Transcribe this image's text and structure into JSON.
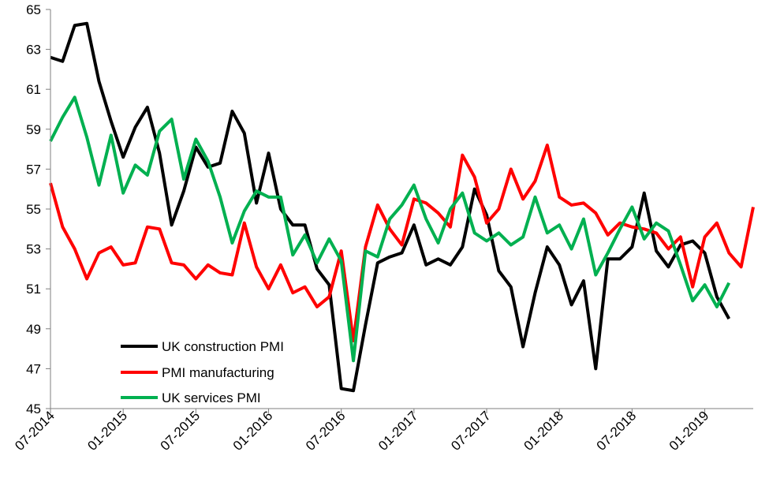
{
  "chart_data": {
    "type": "line",
    "title": "",
    "xlabel": "",
    "ylabel": "",
    "ylim": [
      45,
      65
    ],
    "yticks": [
      45,
      47,
      49,
      51,
      53,
      55,
      57,
      59,
      61,
      63,
      65
    ],
    "xticks": [
      "07-2014",
      "01-2015",
      "07-2015",
      "01-2016",
      "07-2016",
      "01-2017",
      "07-2017",
      "01-2018",
      "07-2018",
      "01-2019"
    ],
    "grid": false,
    "legend_placement": "bottom-left",
    "x": [
      "07-2014",
      "08-2014",
      "09-2014",
      "10-2014",
      "11-2014",
      "12-2014",
      "01-2015",
      "02-2015",
      "03-2015",
      "04-2015",
      "05-2015",
      "06-2015",
      "07-2015",
      "08-2015",
      "09-2015",
      "10-2015",
      "11-2015",
      "12-2015",
      "01-2016",
      "02-2016",
      "03-2016",
      "04-2016",
      "05-2016",
      "06-2016",
      "07-2016",
      "08-2016",
      "09-2016",
      "10-2016",
      "11-2016",
      "12-2016",
      "01-2017",
      "02-2017",
      "03-2017",
      "04-2017",
      "05-2017",
      "06-2017",
      "07-2017",
      "08-2017",
      "09-2017",
      "10-2017",
      "11-2017",
      "12-2017",
      "01-2018",
      "02-2018",
      "03-2018",
      "04-2018",
      "05-2018",
      "06-2018",
      "07-2018",
      "08-2018",
      "09-2018",
      "10-2018",
      "11-2018",
      "12-2018",
      "01-2019",
      "02-2019",
      "03-2019",
      "04-2019",
      "05-2019"
    ],
    "series": [
      {
        "name": "UK construction PMI",
        "color": "#000000",
        "values": [
          62.6,
          62.4,
          64.2,
          64.3,
          61.4,
          59.4,
          57.6,
          59.1,
          60.1,
          57.8,
          54.2,
          55.9,
          58.1,
          57.1,
          57.3,
          59.9,
          58.8,
          55.3,
          57.8,
          55.0,
          54.2,
          54.2,
          52.0,
          51.2,
          46.0,
          45.9,
          49.2,
          52.3,
          52.6,
          52.8,
          54.2,
          52.2,
          52.5,
          52.2,
          53.1,
          56.0,
          54.7,
          51.9,
          51.1,
          48.1,
          50.8,
          53.1,
          52.2,
          50.2,
          51.4,
          47.0,
          52.5,
          52.5,
          53.1,
          55.8,
          52.9,
          52.1,
          53.2,
          53.4,
          52.8,
          50.6,
          49.5,
          null,
          null
        ]
      },
      {
        "name": "PMI manufacturing",
        "color": "#ff0000",
        "values": [
          56.3,
          54.1,
          53.0,
          51.5,
          52.8,
          53.1,
          52.2,
          52.3,
          54.1,
          54.0,
          52.3,
          52.2,
          51.5,
          52.2,
          51.8,
          51.7,
          54.3,
          52.1,
          51.0,
          52.2,
          50.8,
          51.1,
          50.1,
          50.6,
          52.9,
          48.4,
          53.1,
          55.2,
          54.0,
          53.2,
          55.5,
          55.3,
          54.8,
          54.1,
          57.7,
          56.6,
          54.3,
          55.0,
          57.0,
          55.5,
          56.4,
          58.2,
          55.6,
          55.2,
          55.3,
          54.8,
          53.7,
          54.3,
          54.1,
          54.0,
          53.8,
          53.0,
          53.6,
          51.1,
          53.6,
          54.3,
          52.8,
          52.1,
          55.1
        ]
      },
      {
        "name": "UK services PMI",
        "color": "#00b050",
        "values": [
          58.4,
          59.6,
          60.6,
          58.6,
          56.2,
          58.7,
          55.8,
          57.2,
          56.7,
          58.9,
          59.5,
          56.5,
          58.5,
          57.4,
          55.6,
          53.3,
          54.9,
          55.9,
          55.6,
          55.6,
          52.7,
          53.7,
          52.3,
          53.5,
          52.4,
          47.4,
          52.9,
          52.6,
          54.5,
          55.2,
          56.2,
          54.5,
          53.3,
          55.0,
          55.8,
          53.8,
          53.4,
          53.8,
          53.2,
          53.6,
          55.6,
          53.8,
          54.2,
          53.0,
          54.5,
          51.7,
          52.8,
          54.0,
          55.1,
          53.5,
          54.3,
          53.9,
          52.2,
          50.4,
          51.2,
          50.1,
          51.3,
          null,
          null
        ]
      }
    ]
  }
}
